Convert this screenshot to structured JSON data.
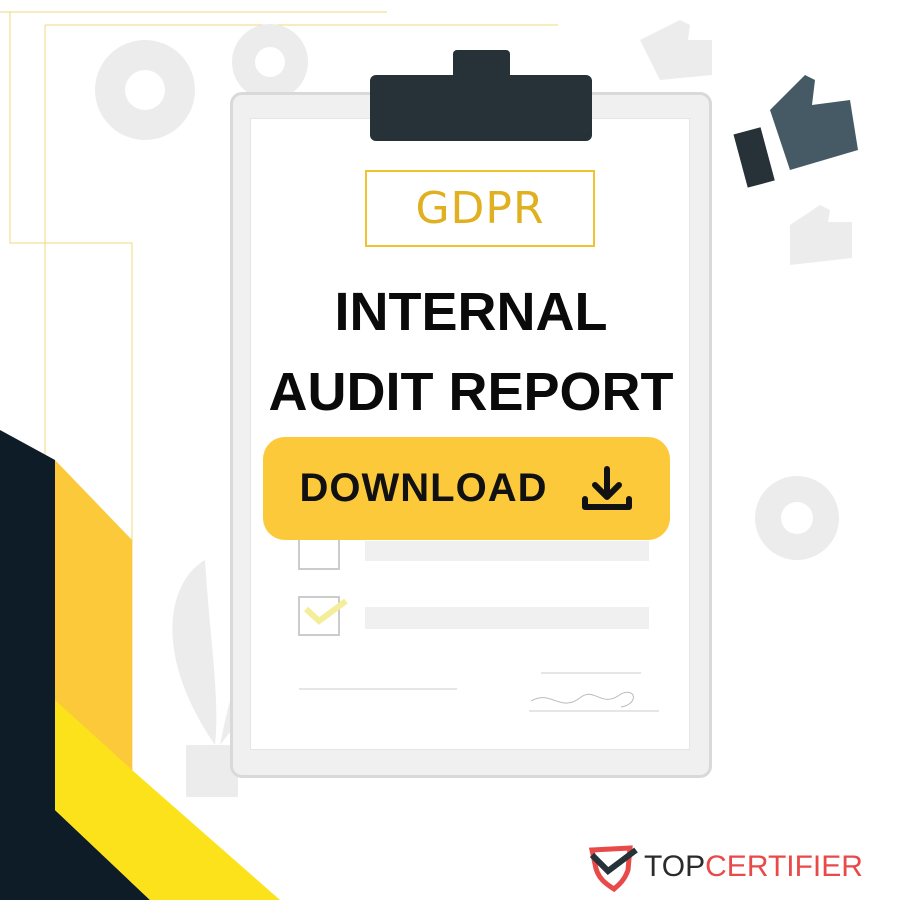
{
  "badge": "GDPR",
  "title_line1": "INTERNAL",
  "title_line2": "AUDIT REPORT",
  "download": {
    "label": "DOWNLOAD",
    "icon": "download-icon"
  },
  "logo": {
    "part1": "TOP",
    "part2": "CERTIFIER"
  },
  "colors": {
    "accent": "#fcc93a",
    "navy": "#0e1c28",
    "clip": "#263238",
    "brand_red": "#e84a4a"
  }
}
